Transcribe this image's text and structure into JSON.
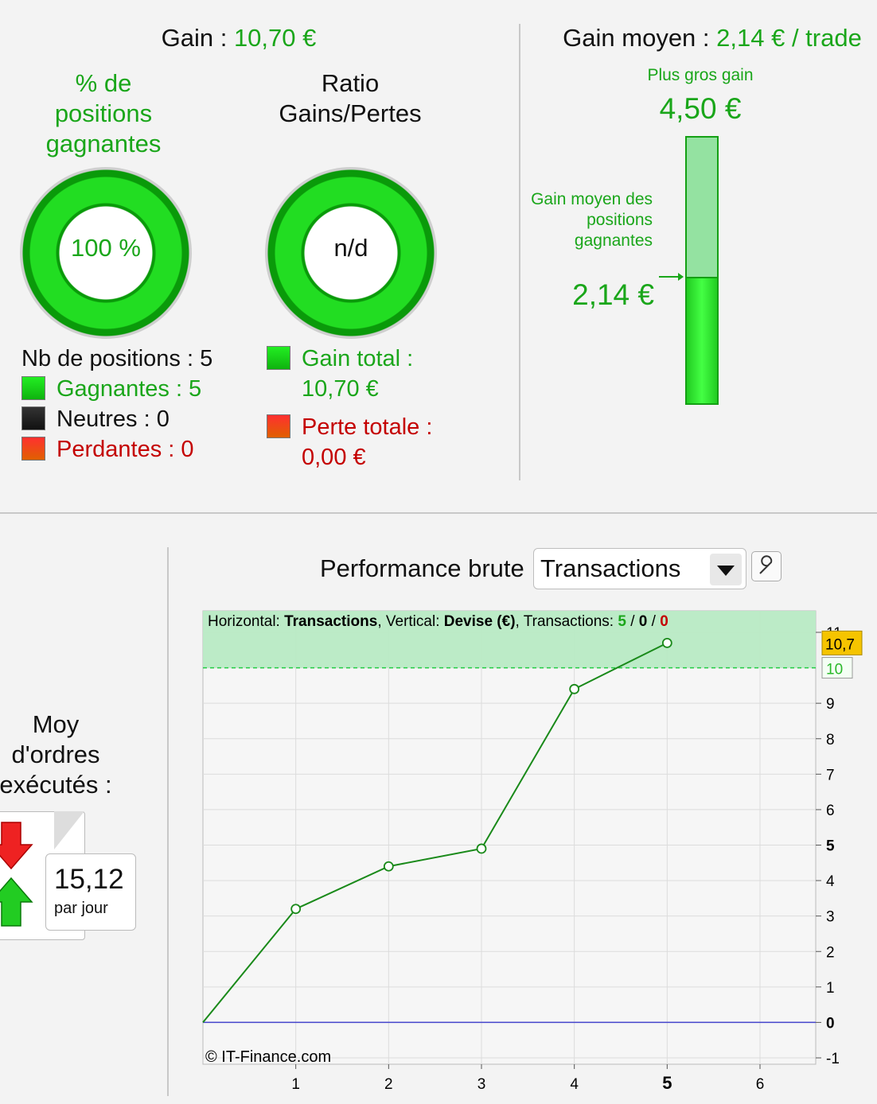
{
  "summary": {
    "gain_label": "Gain : ",
    "gain_value": "10,70 €",
    "pct_winning_title": "% de positions gagnantes",
    "pct_winning_value": "100 %",
    "ratio_title": "Ratio Gains/Pertes",
    "ratio_value": "n/d",
    "nb_positions": "Nb de positions : 5",
    "winning": "Gagnantes : 5",
    "neutral": "Neutres : 0",
    "losing": "Perdantes : 0",
    "total_gain_label": "Gain total :",
    "total_gain_value": "10,70 €",
    "total_loss_label": "Perte totale :",
    "total_loss_value": "0,00 €"
  },
  "average": {
    "title_label": "Gain moyen : ",
    "title_value": "2,14 € / trade",
    "biggest_gain_label": "Plus gros gain",
    "biggest_gain_value": "4,50 €",
    "avg_winning_label": "Gain moyen des positions gagnantes",
    "avg_winning_value": "2,14 €",
    "avg_fraction_of_max": 0.4756
  },
  "orders": {
    "title": "Moy d'ordres exécutés :",
    "value": "15,12",
    "unit": "par jour"
  },
  "performance": {
    "label": "Performance brute",
    "selected_option": "Transactions",
    "caret_icon": "chevron-down-icon",
    "settings_icon": "wrench-icon"
  },
  "colors": {
    "positive": "#1aa61a",
    "negative": "#c40000",
    "line": "#1a8a1a",
    "zero_line": "#4444cc",
    "highlight": "#f5c400"
  },
  "chart_data": {
    "type": "line",
    "header": {
      "h_label": "Horizontal: ",
      "h_value": "Transactions",
      "v_label": ", Vertical: ",
      "v_value": "Devise (€)",
      "t_label": ", Transactions: ",
      "t_win": "5",
      "t_sep1": " / ",
      "t_neutral": "0",
      "t_sep2": " / ",
      "t_loss": "0"
    },
    "x": [
      0,
      1,
      2,
      3,
      4,
      5
    ],
    "y": [
      0,
      3.2,
      4.4,
      4.9,
      9.4,
      10.7
    ],
    "xlim": [
      0,
      6.6
    ],
    "ylim": [
      -1,
      11
    ],
    "x_ticks": [
      "1",
      "2",
      "3",
      "4",
      "5",
      "6"
    ],
    "y_ticks": [
      "-1",
      "0",
      "1",
      "2",
      "3",
      "4",
      "5",
      "6",
      "7",
      "8",
      "9",
      "10",
      "11"
    ],
    "target_line": 10,
    "target_label": "10",
    "last_value_label": "10,7",
    "grid": true,
    "watermark": "© IT-Finance.com"
  }
}
